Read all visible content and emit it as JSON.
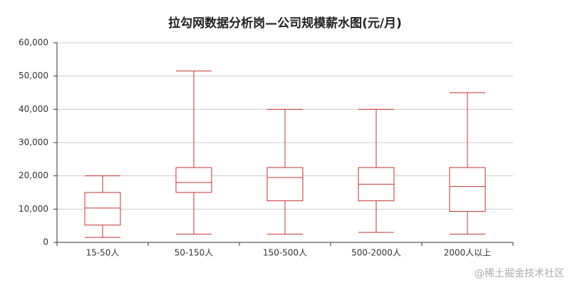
{
  "chart_data": {
    "type": "boxplot",
    "title": "拉勾网数据分析岗—公司规模薪水图(元/月)",
    "categories": [
      "15-50人",
      "50-150人",
      "150-500人",
      "500-2000人",
      "2000人以上"
    ],
    "min": [
      1500,
      2500,
      2500,
      3000,
      2500
    ],
    "q1": [
      5200,
      15000,
      12500,
      12500,
      9300
    ],
    "median": [
      10300,
      18000,
      19500,
      17500,
      16800
    ],
    "q3": [
      15000,
      22500,
      22500,
      22500,
      22500
    ],
    "max": [
      20000,
      51500,
      40000,
      40000,
      45000
    ],
    "color": "#c23531",
    "ylim": [
      0,
      60000
    ],
    "yticks": [
      0,
      {
        "value": 10000,
        "label": "10,000"
      },
      {
        "value": 20000,
        "label": "20,000"
      },
      {
        "value": 30000,
        "label": "30,000"
      },
      {
        "value": 40000,
        "label": "40,000"
      },
      {
        "value": 50000,
        "label": "50,000"
      },
      {
        "value": 60000,
        "label": "60,000"
      }
    ],
    "grid": true,
    "watermark": "@稀土掘金技术社区"
  }
}
